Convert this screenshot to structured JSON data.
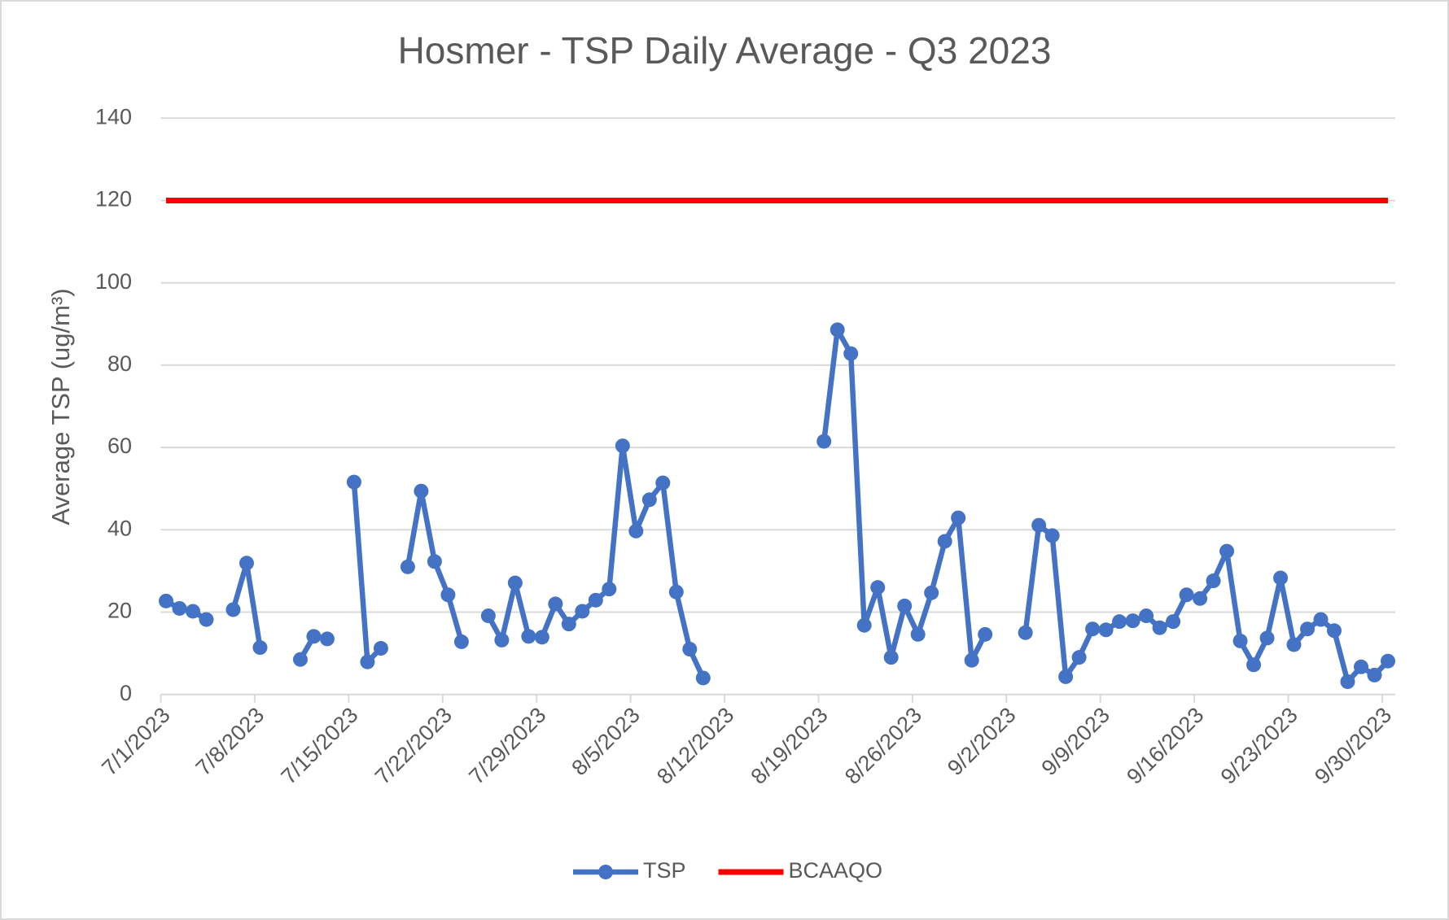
{
  "chart_data": {
    "type": "line",
    "title": "Hosmer - TSP Daily Average - Q3 2023",
    "y_label": "Average TSP (ug/m³)",
    "x": [
      "7/1/2023",
      "7/2/2023",
      "7/3/2023",
      "7/4/2023",
      "7/5/2023",
      "7/6/2023",
      "7/7/2023",
      "7/8/2023",
      "7/9/2023",
      "7/10/2023",
      "7/11/2023",
      "7/12/2023",
      "7/13/2023",
      "7/14/2023",
      "7/15/2023",
      "7/16/2023",
      "7/17/2023",
      "7/18/2023",
      "7/19/2023",
      "7/20/2023",
      "7/21/2023",
      "7/22/2023",
      "7/23/2023",
      "7/24/2023",
      "7/25/2023",
      "7/26/2023",
      "7/27/2023",
      "7/28/2023",
      "7/29/2023",
      "7/30/2023",
      "7/31/2023",
      "8/1/2023",
      "8/2/2023",
      "8/3/2023",
      "8/4/2023",
      "8/5/2023",
      "8/6/2023",
      "8/7/2023",
      "8/8/2023",
      "8/9/2023",
      "8/10/2023",
      "8/11/2023",
      "8/12/2023",
      "8/13/2023",
      "8/14/2023",
      "8/15/2023",
      "8/16/2023",
      "8/17/2023",
      "8/18/2023",
      "8/19/2023",
      "8/20/2023",
      "8/21/2023",
      "8/22/2023",
      "8/23/2023",
      "8/24/2023",
      "8/25/2023",
      "8/26/2023",
      "8/27/2023",
      "8/28/2023",
      "8/29/2023",
      "8/30/2023",
      "8/31/2023",
      "9/1/2023",
      "9/2/2023",
      "9/3/2023",
      "9/4/2023",
      "9/5/2023",
      "9/6/2023",
      "9/7/2023",
      "9/8/2023",
      "9/9/2023",
      "9/10/2023",
      "9/11/2023",
      "9/12/2023",
      "9/13/2023",
      "9/14/2023",
      "9/15/2023",
      "9/16/2023",
      "9/17/2023",
      "9/18/2023",
      "9/19/2023",
      "9/20/2023",
      "9/21/2023",
      "9/22/2023",
      "9/23/2023",
      "9/24/2023",
      "9/25/2023",
      "9/26/2023",
      "9/27/2023",
      "9/28/2023",
      "9/29/2023",
      "9/30/2023"
    ],
    "series": [
      {
        "name": "TSP",
        "color": "#4472c4",
        "marker": true,
        "values": [
          22.7,
          20.9,
          20.2,
          18.2,
          null,
          20.6,
          31.9,
          11.4,
          null,
          null,
          8.5,
          14.1,
          13.5,
          null,
          51.6,
          7.9,
          11.2,
          null,
          31.0,
          49.4,
          32.3,
          24.2,
          12.8,
          null,
          19.1,
          13.2,
          27.1,
          14.1,
          13.9,
          22.0,
          17.1,
          20.2,
          22.9,
          25.6,
          60.4,
          39.7,
          47.3,
          51.4,
          24.9,
          11.0,
          4.0,
          null,
          null,
          null,
          null,
          null,
          null,
          null,
          null,
          61.5,
          88.6,
          82.8,
          16.8,
          26.0,
          9.0,
          21.5,
          14.6,
          24.7,
          37.2,
          42.9,
          8.3,
          14.6,
          null,
          null,
          15.0,
          41.1,
          38.6,
          4.3,
          9.0,
          15.9,
          15.7,
          17.7,
          17.9,
          19.1,
          16.2,
          17.7,
          24.2,
          23.3,
          27.6,
          34.8,
          13.0,
          7.2,
          13.7,
          28.3,
          12.1,
          15.9,
          18.2,
          15.5,
          3.1,
          6.7,
          4.7,
          8.1
        ]
      },
      {
        "name": "BCAAQO",
        "color": "#ff0000",
        "marker": false,
        "values": [
          120,
          120,
          120,
          120,
          120,
          120,
          120,
          120,
          120,
          120,
          120,
          120,
          120,
          120,
          120,
          120,
          120,
          120,
          120,
          120,
          120,
          120,
          120,
          120,
          120,
          120,
          120,
          120,
          120,
          120,
          120,
          120,
          120,
          120,
          120,
          120,
          120,
          120,
          120,
          120,
          120,
          120,
          120,
          120,
          120,
          120,
          120,
          120,
          120,
          120,
          120,
          120,
          120,
          120,
          120,
          120,
          120,
          120,
          120,
          120,
          120,
          120,
          120,
          120,
          120,
          120,
          120,
          120,
          120,
          120,
          120,
          120,
          120,
          120,
          120,
          120,
          120,
          120,
          120,
          120,
          120,
          120,
          120,
          120,
          120,
          120,
          120,
          120,
          120,
          120,
          120,
          120
        ]
      }
    ],
    "xlim": [
      "7/1/2023",
      "9/30/2023"
    ],
    "xticks": [
      "7/1/2023",
      "7/8/2023",
      "7/15/2023",
      "7/22/2023",
      "7/29/2023",
      "8/5/2023",
      "8/12/2023",
      "8/19/2023",
      "8/26/2023",
      "9/2/2023",
      "9/9/2023",
      "9/16/2023",
      "9/23/2023",
      "9/30/2023"
    ],
    "ylim": [
      0,
      140
    ],
    "yticks": [
      0,
      20,
      40,
      60,
      80,
      100,
      120,
      140
    ],
    "grid": true,
    "legend": "bottom"
  }
}
